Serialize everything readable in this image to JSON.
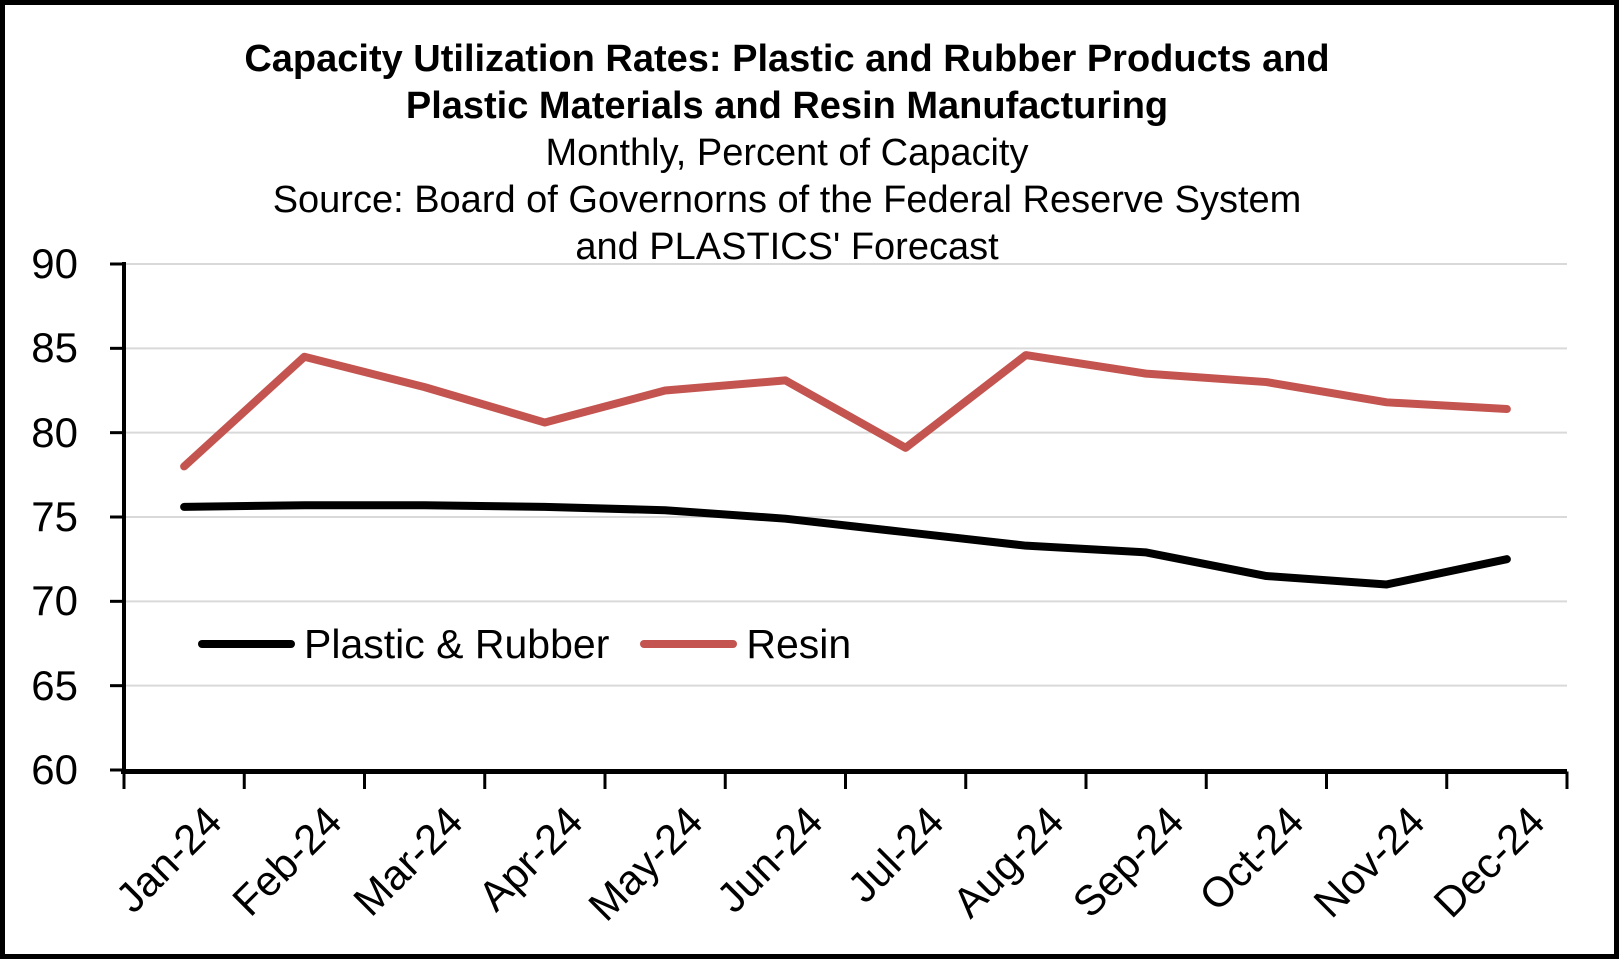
{
  "title": {
    "line1": "Capacity Utilization Rates: Plastic and Rubber Products and",
    "line2": "Plastic Materials and Resin Manufacturing",
    "line3": "Monthly, Percent of Capacity",
    "line4": "Source: Board of Governorns of the Federal Reserve System",
    "line5": "and PLASTICS' Forecast"
  },
  "legend": {
    "items": [
      {
        "label": "Plastic & Rubber",
        "color": "#000000"
      },
      {
        "label": "Resin",
        "color": "#C4544F"
      }
    ]
  },
  "colors": {
    "background": "#FFFFFF",
    "border": "#000000",
    "axis": "#000000",
    "grid": "#D9D9D9",
    "series_plastic_rubber": "#000000",
    "series_resin": "#C4544F"
  },
  "chart_data": {
    "type": "line",
    "title": "Capacity Utilization Rates: Plastic and Rubber Products and Plastic Materials and Resin Manufacturing",
    "subtitle": "Monthly, Percent of Capacity",
    "source": "Source: Board of Governorns of the Federal Reserve System and PLASTICS' Forecast",
    "xlabel": "",
    "ylabel": "",
    "categories": [
      "Jan-24",
      "Feb-24",
      "Mar-24",
      "Apr-24",
      "May-24",
      "Jun-24",
      "Jul-24",
      "Aug-24",
      "Sep-24",
      "Oct-24",
      "Nov-24",
      "Dec-24"
    ],
    "series": [
      {
        "name": "Plastic & Rubber",
        "color": "#000000",
        "values": [
          75.6,
          75.7,
          75.7,
          75.6,
          75.4,
          74.9,
          74.1,
          73.3,
          72.9,
          71.5,
          71.0,
          72.5
        ]
      },
      {
        "name": "Resin",
        "color": "#C4544F",
        "values": [
          78.0,
          84.5,
          82.7,
          80.6,
          82.5,
          83.1,
          79.1,
          84.6,
          83.5,
          83.0,
          81.8,
          81.4
        ]
      }
    ],
    "ylim": [
      60,
      90
    ],
    "yticks": [
      60,
      65,
      70,
      75,
      80,
      85,
      90
    ],
    "grid": true,
    "legend_position": "inside-bottom-left",
    "x_tick_rotation": -45
  }
}
